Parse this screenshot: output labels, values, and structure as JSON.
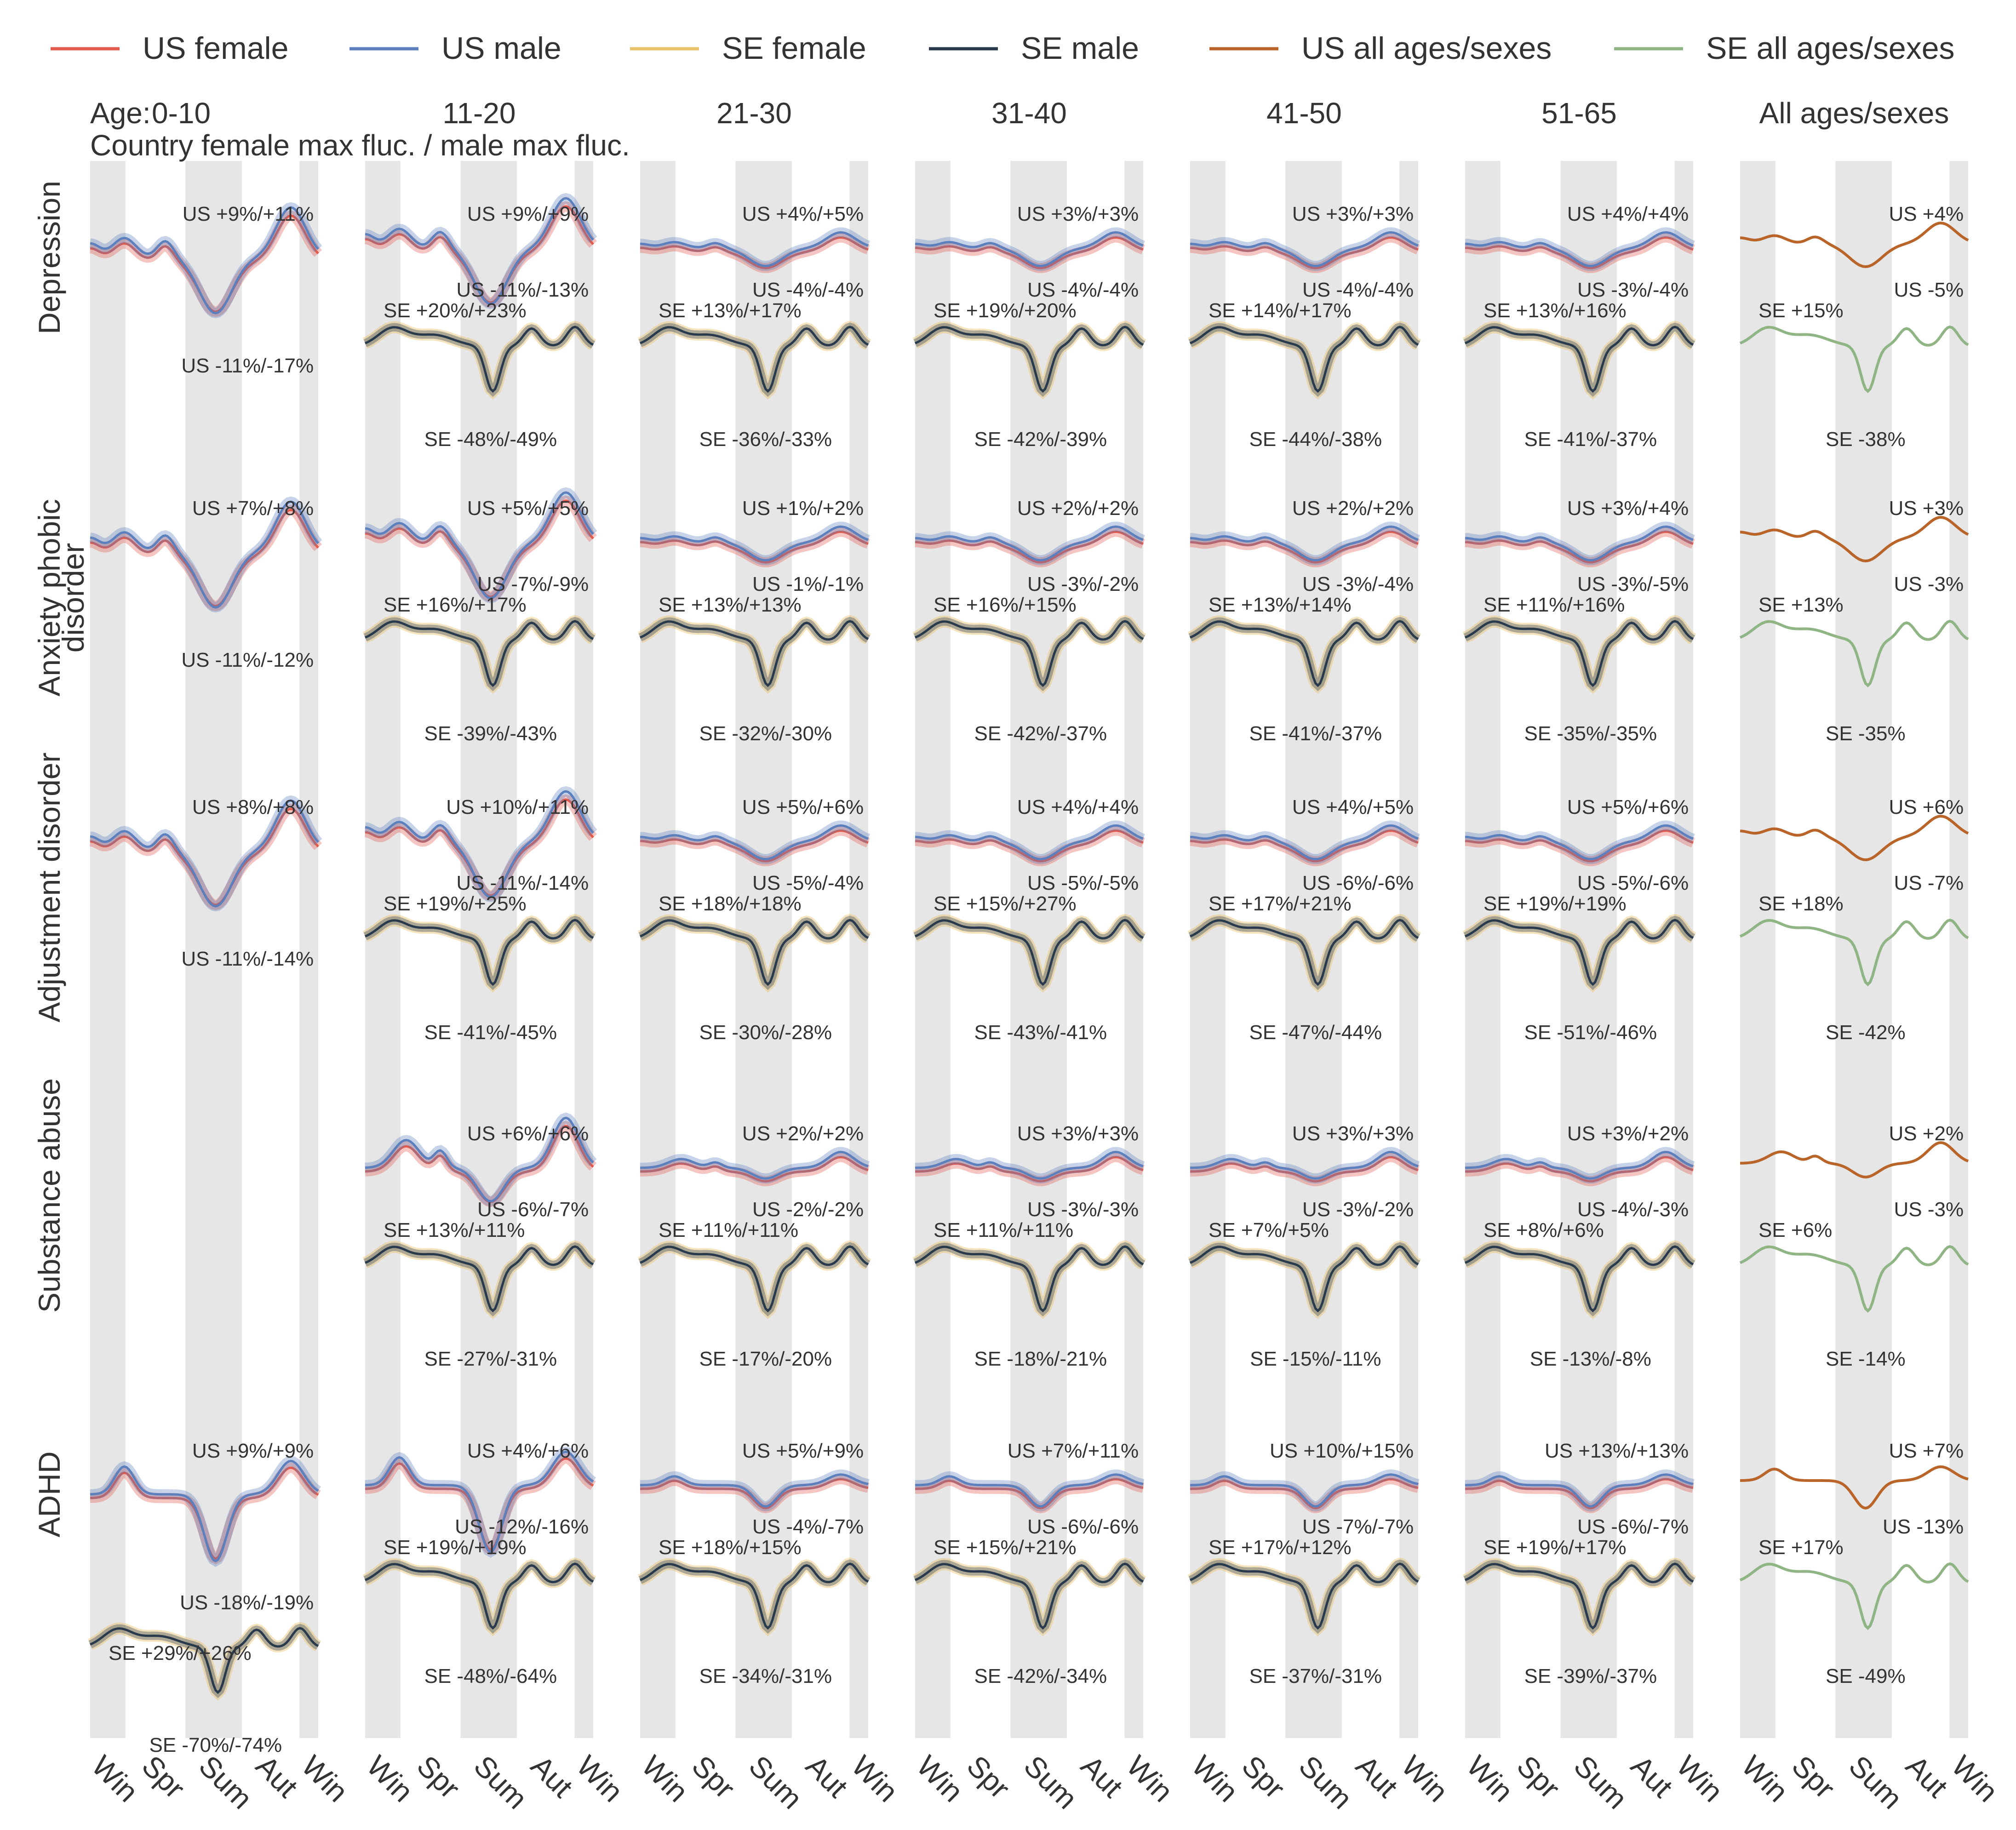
{
  "colors": {
    "us_female": "#e15a4c",
    "us_male": "#5b80bd",
    "se_female": "#e9c36c",
    "se_male": "#283a4c",
    "us_all": "#b9652a",
    "se_all": "#8fb584",
    "season_shade": "#e6e6e6",
    "text": "#333333"
  },
  "legend": [
    {
      "key": "us_female",
      "label": "US female"
    },
    {
      "key": "us_male",
      "label": "US male"
    },
    {
      "key": "se_female",
      "label": "SE female"
    },
    {
      "key": "se_male",
      "label": "SE male"
    },
    {
      "key": "us_all",
      "label": "US all ages/sexes"
    },
    {
      "key": "se_all",
      "label": "SE all ages/sexes"
    }
  ],
  "header": {
    "age_prefix": "Age:",
    "subtitle": "Country female max fluc. / male max fluc."
  },
  "chart_data": {
    "type": "line",
    "x_ticks": [
      "Win",
      "Spr",
      "Sum",
      "Aut",
      "Win"
    ],
    "columns": [
      "0-10",
      "11-20",
      "21-30",
      "31-40",
      "41-50",
      "51-65",
      "All ages/sexes"
    ],
    "rows": [
      "Depression",
      "Anxiety phobic disorder",
      "Adjustment disorder",
      "Substance abuse",
      "ADHD"
    ],
    "panels": [
      [
        {
          "us": [
            "US +9%/+11%",
            "US -11%/-17%"
          ],
          "se": []
        },
        {
          "us": [
            "US +9%/+9%",
            "US -11%/-13%"
          ],
          "se": [
            "SE +20%/+23%",
            "SE -48%/-49%"
          ]
        },
        {
          "us": [
            "US +4%/+5%",
            "US -4%/-4%"
          ],
          "se": [
            "SE +13%/+17%",
            "SE -36%/-33%"
          ]
        },
        {
          "us": [
            "US +3%/+3%",
            "US -4%/-4%"
          ],
          "se": [
            "SE +19%/+20%",
            "SE -42%/-39%"
          ]
        },
        {
          "us": [
            "US +3%/+3%",
            "US -4%/-4%"
          ],
          "se": [
            "SE +14%/+17%",
            "SE -44%/-38%"
          ]
        },
        {
          "us": [
            "US +4%/+4%",
            "US -3%/-4%"
          ],
          "se": [
            "SE +13%/+16%",
            "SE -41%/-37%"
          ]
        },
        {
          "us": [
            "US +4%",
            "US -5%"
          ],
          "se": [
            "SE +15%",
            "SE -38%"
          ]
        }
      ],
      [
        {
          "us": [
            "US +7%/+8%",
            "US -11%/-12%"
          ],
          "se": []
        },
        {
          "us": [
            "US +5%/+5%",
            "US -7%/-9%"
          ],
          "se": [
            "SE +16%/+17%",
            "SE -39%/-43%"
          ]
        },
        {
          "us": [
            "US +1%/+2%",
            "US -1%/-1%"
          ],
          "se": [
            "SE +13%/+13%",
            "SE -32%/-30%"
          ]
        },
        {
          "us": [
            "US +2%/+2%",
            "US -3%/-2%"
          ],
          "se": [
            "SE +16%/+15%",
            "SE -42%/-37%"
          ]
        },
        {
          "us": [
            "US +2%/+2%",
            "US -3%/-4%"
          ],
          "se": [
            "SE +13%/+14%",
            "SE -41%/-37%"
          ]
        },
        {
          "us": [
            "US +3%/+4%",
            "US -3%/-5%"
          ],
          "se": [
            "SE +11%/+16%",
            "SE -35%/-35%"
          ]
        },
        {
          "us": [
            "US +3%",
            "US -3%"
          ],
          "se": [
            "SE +13%",
            "SE -35%"
          ]
        }
      ],
      [
        {
          "us": [
            "US +8%/+8%",
            "US -11%/-14%"
          ],
          "se": []
        },
        {
          "us": [
            "US +10%/+11%",
            "US -11%/-14%"
          ],
          "se": [
            "SE +19%/+25%",
            "SE -41%/-45%"
          ]
        },
        {
          "us": [
            "US +5%/+6%",
            "US -5%/-4%"
          ],
          "se": [
            "SE +18%/+18%",
            "SE -30%/-28%"
          ]
        },
        {
          "us": [
            "US +4%/+4%",
            "US -5%/-5%"
          ],
          "se": [
            "SE +15%/+27%",
            "SE -43%/-41%"
          ]
        },
        {
          "us": [
            "US +4%/+5%",
            "US -6%/-6%"
          ],
          "se": [
            "SE +17%/+21%",
            "SE -47%/-44%"
          ]
        },
        {
          "us": [
            "US +5%/+6%",
            "US -5%/-6%"
          ],
          "se": [
            "SE +19%/+19%",
            "SE -51%/-46%"
          ]
        },
        {
          "us": [
            "US +6%",
            "US -7%"
          ],
          "se": [
            "SE +18%",
            "SE -42%"
          ]
        }
      ],
      [
        null,
        {
          "us": [
            "US +6%/+6%",
            "US -6%/-7%"
          ],
          "se": [
            "SE +13%/+11%",
            "SE -27%/-31%"
          ]
        },
        {
          "us": [
            "US +2%/+2%",
            "US -2%/-2%"
          ],
          "se": [
            "SE +11%/+11%",
            "SE -17%/-20%"
          ]
        },
        {
          "us": [
            "US +3%/+3%",
            "US -3%/-3%"
          ],
          "se": [
            "SE +11%/+11%",
            "SE -18%/-21%"
          ]
        },
        {
          "us": [
            "US +3%/+3%",
            "US -3%/-2%"
          ],
          "se": [
            "SE +7%/+5%",
            "SE -15%/-11%"
          ]
        },
        {
          "us": [
            "US +3%/+2%",
            "US -4%/-3%"
          ],
          "se": [
            "SE +8%/+6%",
            "SE -13%/-8%"
          ]
        },
        {
          "us": [
            "US +2%",
            "US -3%"
          ],
          "se": [
            "SE +6%",
            "SE -14%"
          ]
        }
      ],
      [
        {
          "us": [
            "US +9%/+9%",
            "US -18%/-19%"
          ],
          "se": [
            "SE +29%/+26%",
            "SE -70%/-74%"
          ]
        },
        {
          "us": [
            "US +4%/+6%",
            "US -12%/-16%"
          ],
          "se": [
            "SE +19%/+19%",
            "SE -48%/-64%"
          ]
        },
        {
          "us": [
            "US +5%/+9%",
            "US -4%/-7%"
          ],
          "se": [
            "SE +18%/+15%",
            "SE -34%/-31%"
          ]
        },
        {
          "us": [
            "US +7%/+11%",
            "US -6%/-6%"
          ],
          "se": [
            "SE +15%/+21%",
            "SE -42%/-34%"
          ]
        },
        {
          "us": [
            "US +10%/+15%",
            "US -7%/-7%"
          ],
          "se": [
            "SE +17%/+12%",
            "SE -37%/-31%"
          ]
        },
        {
          "us": [
            "US +13%/+13%",
            "US -6%/-7%"
          ],
          "se": [
            "SE +19%/+17%",
            "SE -39%/-37%"
          ]
        },
        {
          "us": [
            "US +7%",
            "US -13%"
          ],
          "se": [
            "SE +17%",
            "SE -49%"
          ]
        }
      ]
    ]
  }
}
